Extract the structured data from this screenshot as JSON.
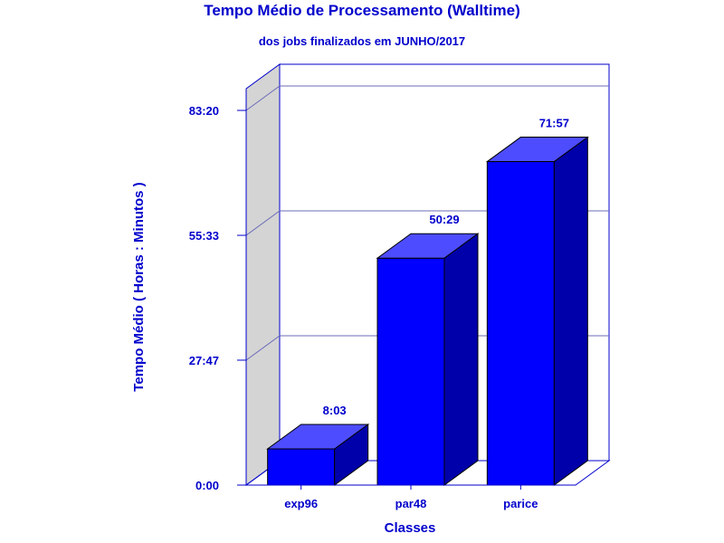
{
  "chart_data": {
    "type": "bar",
    "title": "Tempo Médio de Processamento (Walltime)",
    "subtitle": "dos jobs finalizados em JUNHO/2017",
    "xlabel": "Classes",
    "ylabel": "Tempo Médio ( Horas : Minutos )",
    "categories": [
      "exp96",
      "par48",
      "parice"
    ],
    "values": [
      483,
      3029,
      4317
    ],
    "value_labels": [
      "8:03",
      "50:29",
      "71:57"
    ],
    "value_unit": "minutes",
    "yticks": [
      0,
      1667,
      3333,
      5000
    ],
    "ytick_labels": [
      "0:00",
      "27:47",
      "55:33",
      "83:20"
    ],
    "ylim": [
      0,
      5000
    ],
    "grid": true,
    "legend": "none",
    "colors": {
      "bar_front": "#0000ff",
      "bar_top": "#4d4dff",
      "bar_side": "#0000aa",
      "axis": "#0000cc",
      "wall": "#d4d4d4",
      "text": "#0000cc"
    }
  }
}
